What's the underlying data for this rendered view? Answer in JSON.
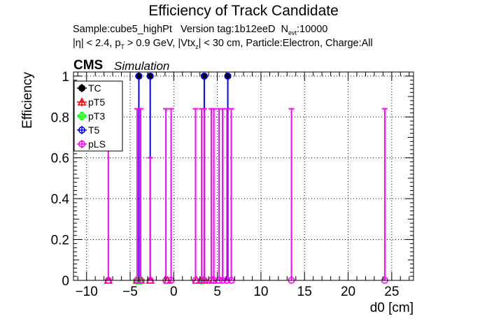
{
  "chart_data": {
    "type": "scatter",
    "title": "Efficiency of Track Candidate",
    "subtitle": {
      "sample": "Sample:cube5_highPt",
      "version": "Version tag:1b12eeD",
      "nevt_symbol": "N",
      "nevt_sub": "evt",
      "nevt_value": ":10000",
      "cuts": {
        "eta": "|η| < 2.4, p",
        "pt_sub": "T",
        "pt_cut": " > 0.9 GeV, |Vtx",
        "vtx_sub": "z",
        "rest": "| < 30 cm, Particle:Electron, Charge:All"
      }
    },
    "experiment": "CMS",
    "experiment_tag": "Simulation",
    "xlabel": "d0 [cm]",
    "ylabel": "Efficiency",
    "xlim": [
      -11.5,
      27.5
    ],
    "ylim": [
      0,
      1.02
    ],
    "x_ticks": [
      -10,
      -5,
      0,
      5,
      10,
      15,
      20,
      25
    ],
    "x_tick_labels": [
      "−10",
      "−5",
      "0",
      "5",
      "10",
      "15",
      "20",
      "25"
    ],
    "y_ticks": [
      0,
      0.2,
      0.4,
      0.6,
      0.8,
      1
    ],
    "y_tick_labels": [
      "0",
      "0.2",
      "0.4",
      "0.6",
      "0.8",
      "1"
    ],
    "grid": true,
    "legend_position": "top-left",
    "series": [
      {
        "name": "TC",
        "color": "#000000",
        "marker": "filled-circle",
        "points": [
          {
            "x": -4.0,
            "y": 1.0
          },
          {
            "x": -2.7,
            "y": 1.0
          },
          {
            "x": 3.5,
            "y": 1.0
          },
          {
            "x": 6.2,
            "y": 1.0
          }
        ]
      },
      {
        "name": "pT5",
        "color": "#ff0000",
        "marker": "open-triangle",
        "points": [
          {
            "x": -7.5,
            "y": 0
          },
          {
            "x": -4.2,
            "y": 0
          },
          {
            "x": -3.8,
            "y": 0
          },
          {
            "x": -2.7,
            "y": 0
          },
          {
            "x": -0.7,
            "y": 0
          },
          {
            "x": 2.6,
            "y": 0
          },
          {
            "x": 3.2,
            "y": 0
          },
          {
            "x": 3.5,
            "y": 0
          },
          {
            "x": 4.5,
            "y": 0
          }
        ]
      },
      {
        "name": "pT3",
        "color": "#00ff00",
        "marker": "open-cross",
        "points": [
          {
            "x": -4.2,
            "y": 0
          },
          {
            "x": -3.8,
            "y": 0
          },
          {
            "x": 3.2,
            "y": 0
          }
        ]
      },
      {
        "name": "T5",
        "color": "#0000ff",
        "marker": "open-circle",
        "points": [
          {
            "x": -4.0,
            "y": 1.0
          },
          {
            "x": -2.7,
            "y": 1.0
          },
          {
            "x": 3.5,
            "y": 1.0
          },
          {
            "x": 6.2,
            "y": 1.0
          }
        ]
      },
      {
        "name": "pLS",
        "color": "#ff00ff",
        "marker": "open-circle",
        "points": [
          {
            "x": -7.5,
            "y": 0
          },
          {
            "x": -4.2,
            "y": 0
          },
          {
            "x": -3.8,
            "y": 0
          },
          {
            "x": -2.7,
            "y": 0
          },
          {
            "x": -0.9,
            "y": 0
          },
          {
            "x": -0.3,
            "y": 0
          },
          {
            "x": 2.5,
            "y": 0
          },
          {
            "x": 3.2,
            "y": 0
          },
          {
            "x": 3.5,
            "y": 0
          },
          {
            "x": 4.3,
            "y": 0
          },
          {
            "x": 4.6,
            "y": 0
          },
          {
            "x": 5.2,
            "y": 0
          },
          {
            "x": 5.6,
            "y": 0
          },
          {
            "x": 6.1,
            "y": 0
          },
          {
            "x": 6.6,
            "y": 0
          },
          {
            "x": 13.5,
            "y": 0
          },
          {
            "x": 24.2,
            "y": 0
          }
        ]
      }
    ],
    "error_bars": [
      {
        "color": "#0000ff",
        "x": -4.0,
        "low": 0,
        "high": 1.0
      },
      {
        "color": "#0000ff",
        "x": -2.7,
        "low": 0,
        "high": 1.0
      },
      {
        "color": "#0000ff",
        "x": 3.5,
        "low": 0,
        "high": 1.0
      },
      {
        "color": "#0000ff",
        "x": 6.2,
        "low": 0,
        "high": 1.0
      },
      {
        "color": "#ff00ff",
        "x": -7.5,
        "low": 0,
        "high": 0.84
      },
      {
        "color": "#ff00ff",
        "x": -4.2,
        "low": 0,
        "high": 0.84
      },
      {
        "color": "#ff00ff",
        "x": -3.8,
        "low": 0,
        "high": 0.84
      },
      {
        "color": "#ff00ff",
        "x": -2.7,
        "low": 0,
        "high": 0.6
      },
      {
        "color": "#ff00ff",
        "x": -0.9,
        "low": 0,
        "high": 0.84
      },
      {
        "color": "#ff00ff",
        "x": -0.3,
        "low": 0,
        "high": 0.84
      },
      {
        "color": "#ff00ff",
        "x": 2.5,
        "low": 0,
        "high": 0.84
      },
      {
        "color": "#ff00ff",
        "x": 3.2,
        "low": 0,
        "high": 0.84
      },
      {
        "color": "#ff00ff",
        "x": 3.5,
        "low": 0,
        "high": 0.84
      },
      {
        "color": "#ff00ff",
        "x": 4.3,
        "low": 0,
        "high": 0.84
      },
      {
        "color": "#ff00ff",
        "x": 4.6,
        "low": 0,
        "high": 0.84
      },
      {
        "color": "#ff00ff",
        "x": 5.2,
        "low": 0,
        "high": 0.84
      },
      {
        "color": "#ff00ff",
        "x": 5.6,
        "low": 0,
        "high": 0.84
      },
      {
        "color": "#ff00ff",
        "x": 6.1,
        "low": 0,
        "high": 0.84
      },
      {
        "color": "#ff00ff",
        "x": 6.6,
        "low": 0,
        "high": 0.84
      },
      {
        "color": "#ff00ff",
        "x": 13.5,
        "low": 0,
        "high": 0.84
      },
      {
        "color": "#ff00ff",
        "x": 24.2,
        "low": 0,
        "high": 0.84
      }
    ]
  }
}
